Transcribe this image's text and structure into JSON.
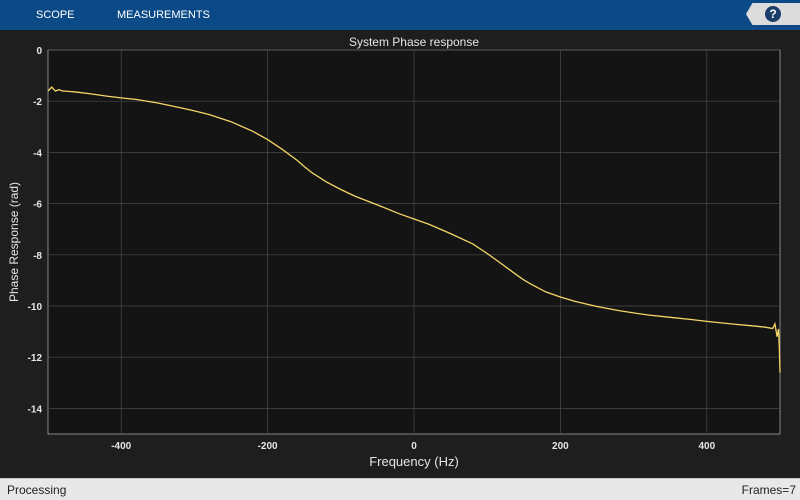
{
  "toolbar": {
    "tabs": [
      {
        "label": "SCOPE"
      },
      {
        "label": "MEASUREMENTS"
      }
    ],
    "help_icon": "question-mark-icon"
  },
  "status": {
    "left": "Processing",
    "right": "Frames=7"
  },
  "colors": {
    "toolbar": "#0b4a86",
    "plot_bg": "#141414",
    "line": "#f5d666",
    "grid": "#4a4a4a"
  },
  "chart_data": {
    "type": "line",
    "title": "System Phase response",
    "xlabel": "Frequency (Hz)",
    "ylabel": "Phase Response (rad)",
    "xlim": [
      -500,
      500
    ],
    "ylim": [
      -15,
      0
    ],
    "xticks": [
      -400,
      -200,
      0,
      200,
      400
    ],
    "yticks": [
      0,
      -2,
      -4,
      -6,
      -8,
      -10,
      -12,
      -14
    ],
    "grid": true,
    "series": [
      {
        "x": [
          -500,
          -495,
          -490,
          -485,
          -480,
          -470,
          -460,
          -440,
          -420,
          -400,
          -380,
          -350,
          -320,
          -300,
          -280,
          -250,
          -220,
          -200,
          -180,
          -160,
          -150,
          -140,
          -120,
          -100,
          -80,
          -50,
          -20,
          0,
          20,
          50,
          80,
          100,
          120,
          140,
          150,
          160,
          180,
          200,
          220,
          250,
          280,
          300,
          320,
          350,
          380,
          400,
          420,
          440,
          460,
          480,
          490,
          493,
          496,
          498,
          499,
          500
        ],
        "y": [
          -1.6,
          -1.45,
          -1.6,
          -1.55,
          -1.6,
          -1.62,
          -1.65,
          -1.72,
          -1.8,
          -1.87,
          -1.93,
          -2.07,
          -2.25,
          -2.38,
          -2.52,
          -2.8,
          -3.18,
          -3.5,
          -3.88,
          -4.3,
          -4.55,
          -4.78,
          -5.15,
          -5.45,
          -5.72,
          -6.05,
          -6.4,
          -6.6,
          -6.8,
          -7.17,
          -7.57,
          -7.95,
          -8.36,
          -8.78,
          -8.98,
          -9.15,
          -9.45,
          -9.65,
          -9.82,
          -10.02,
          -10.18,
          -10.27,
          -10.35,
          -10.44,
          -10.53,
          -10.6,
          -10.66,
          -10.72,
          -10.77,
          -10.83,
          -10.88,
          -10.7,
          -11.2,
          -10.9,
          -11.6,
          -12.6
        ]
      }
    ]
  }
}
